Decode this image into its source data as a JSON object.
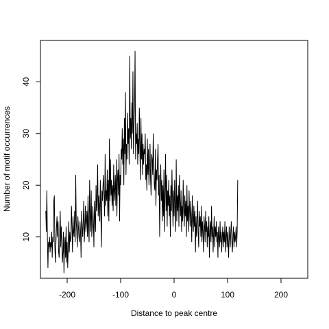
{
  "chart_data": {
    "type": "line",
    "title": "",
    "xlabel": "Distance to peak centre",
    "ylabel": "Number of motif occurrences",
    "xlim": [
      -250,
      250
    ],
    "ylim": [
      2,
      48
    ],
    "xticks": [
      -200,
      -100,
      0,
      100,
      200
    ],
    "yticks": [
      10,
      20,
      30,
      40
    ],
    "xtick_labels": [
      "-200",
      "-100",
      "0",
      "100",
      "200"
    ],
    "ytick_labels": [
      "10",
      "20",
      "30",
      "40"
    ],
    "grid": false,
    "legend": "none",
    "box": true,
    "line_color": "#000000",
    "series": [
      {
        "x_start": -240,
        "x_step": 1,
        "values": [
          15,
          11,
          19,
          10,
          4,
          9,
          8,
          10,
          7,
          9,
          8,
          11,
          6,
          10,
          9,
          17,
          18,
          8,
          5,
          9,
          12,
          14,
          10,
          13,
          7,
          6,
          11,
          15,
          8,
          12,
          9,
          5,
          7,
          11,
          3,
          8,
          10,
          6,
          12,
          5,
          9,
          4,
          8,
          13,
          7,
          11,
          9,
          10,
          16,
          12,
          7,
          14,
          11,
          10,
          15,
          9,
          22,
          13,
          11,
          8,
          14,
          12,
          10,
          9,
          13,
          11,
          6,
          15,
          12,
          10,
          13,
          17,
          9,
          12,
          16,
          11,
          13,
          15,
          10,
          18,
          12,
          9,
          21,
          14,
          11,
          19,
          10,
          12,
          16,
          13,
          8,
          17,
          14,
          11,
          20,
          15,
          17,
          24,
          14,
          18,
          16,
          13,
          21,
          15,
          8,
          19,
          17,
          20,
          22,
          18,
          14,
          26,
          16,
          19,
          17,
          23,
          14,
          21,
          13,
          29,
          17,
          25,
          18,
          21,
          16,
          20,
          15,
          24,
          17,
          19,
          22,
          16,
          25,
          14,
          21,
          23,
          18,
          26,
          13,
          22,
          20,
          27,
          25,
          31,
          24,
          29,
          20,
          33,
          26,
          38,
          22,
          28,
          25,
          34,
          28,
          31,
          24,
          45,
          29,
          33,
          27,
          36,
          30,
          42,
          26,
          31,
          35,
          46,
          25,
          30,
          28,
          32,
          24,
          29,
          26,
          35,
          27,
          21,
          33,
          25,
          30,
          22,
          28,
          24,
          27,
          26,
          30,
          21,
          24,
          19,
          29,
          22,
          27,
          20,
          23,
          28,
          21,
          18,
          26,
          25,
          22,
          30,
          24,
          20,
          19,
          27,
          16,
          23,
          21,
          25,
          28,
          18,
          22,
          10,
          19,
          24,
          17,
          21,
          13,
          20,
          14,
          23,
          11,
          18,
          26,
          15,
          22,
          12,
          19,
          16,
          21,
          14,
          18,
          10,
          20,
          15,
          23,
          17,
          12,
          19,
          14,
          21,
          16,
          11,
          25,
          13,
          18,
          15,
          20,
          12,
          22,
          17,
          14,
          19,
          11,
          16,
          13,
          21,
          15,
          12,
          18,
          14,
          17,
          10,
          20,
          13,
          16,
          11,
          19,
          15,
          12,
          17,
          14,
          9,
          18,
          13,
          11,
          16,
          12,
          15,
          7,
          14,
          10,
          13,
          17,
          11,
          8,
          15,
          12,
          14,
          10,
          16,
          9,
          13,
          11,
          7,
          14,
          12,
          9,
          15,
          11,
          13,
          8,
          12,
          10,
          14,
          6,
          11,
          13,
          9,
          16,
          10,
          12,
          7,
          11,
          14,
          8,
          12,
          10,
          13,
          9,
          11,
          6,
          12,
          10,
          8,
          13,
          9,
          11,
          7,
          10,
          12,
          8,
          11,
          9,
          13,
          7,
          10,
          12,
          8,
          11,
          9,
          6,
          12,
          10,
          8,
          11,
          13,
          9,
          7,
          10,
          12,
          8,
          11,
          9,
          10,
          12,
          8,
          11,
          21
        ]
      }
    ]
  }
}
